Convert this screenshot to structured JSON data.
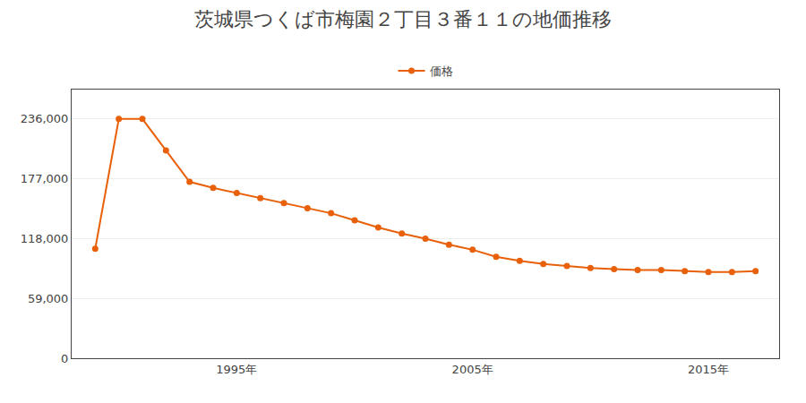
{
  "chart_data": {
    "type": "line",
    "title": "茨城県つくば市梅園２丁目３番１１の地価推移",
    "x": [
      1989,
      1990,
      1991,
      1992,
      1993,
      1994,
      1995,
      1996,
      1997,
      1998,
      1999,
      2000,
      2001,
      2002,
      2003,
      2004,
      2005,
      2006,
      2007,
      2008,
      2009,
      2010,
      2011,
      2012,
      2013,
      2014,
      2015,
      2016,
      2017
    ],
    "series": [
      {
        "name": "価格",
        "color": "#e8600a",
        "marker": "circle",
        "values": [
          108000,
          236000,
          236000,
          205000,
          174000,
          168000,
          163000,
          158000,
          153000,
          148000,
          143000,
          136000,
          129000,
          123000,
          118000,
          112000,
          107000,
          100000,
          96000,
          93000,
          91000,
          89000,
          88000,
          87000,
          87000,
          86000,
          85000,
          85000,
          86000
        ]
      }
    ],
    "xlim": [
      1988,
      2018
    ],
    "xticks": [
      {
        "value": 1995,
        "label": "1995年"
      },
      {
        "value": 2005,
        "label": "2005年"
      },
      {
        "value": 2015,
        "label": "2015年"
      }
    ],
    "ylim": [
      0,
      265000
    ],
    "yticks": [
      0,
      {
        "value": 59000,
        "label": "59,000"
      },
      {
        "value": 118000,
        "label": "118,000"
      },
      {
        "value": 177000,
        "label": "177,000"
      },
      {
        "value": 236000,
        "label": "236,000"
      }
    ],
    "grid": "y",
    "legend": "top"
  }
}
